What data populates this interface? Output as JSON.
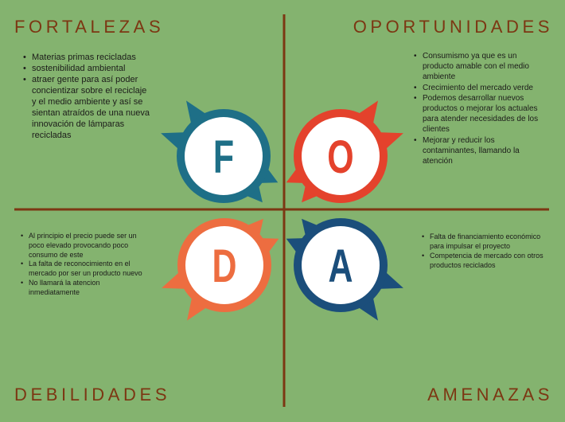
{
  "quadrants": {
    "fortalezas": {
      "title": "FORTALEZAS",
      "items": [
        "Materias primas recicladas",
        "sostenibilidad ambiental",
        "atraer gente para así poder concientizar sobre el reciclaje y el medio ambiente y así se sientan atraídos de una nueva innovación de lámparas recicladas"
      ]
    },
    "oportunidades": {
      "title": "OPORTUNIDADES",
      "items": [
        "Consumismo ya que es un producto amable con el medio ambiente",
        "Crecimiento del mercado verde",
        "Podemos desarrollar nuevos productos o mejorar los actuales para atender necesidades de los clientes",
        "Mejorar y reducir los contaminantes, llamando la atención"
      ]
    },
    "debilidades": {
      "title": "DEBILIDADES",
      "items": [
        "Al principio el precio puede ser un poco elevado provocando poco consumo de este",
        "La falta de reconocimiento en el mercado por ser un producto nuevo",
        "No llamará la atencion inmediatamente"
      ]
    },
    "amenazas": {
      "title": "AMENAZAS",
      "items": [
        "Falta de financiamiento económico para impulsar el proyecto",
        "Competencia de mercado con otros productos reciclados"
      ]
    }
  },
  "badges": [
    {
      "letter": "F",
      "color": "#1e6f87"
    },
    {
      "letter": "O",
      "color": "#e4422c"
    },
    {
      "letter": "D",
      "color": "#ed6d40"
    },
    {
      "letter": "A",
      "color": "#1b4e7b"
    }
  ],
  "colors": {
    "background": "#84b36f",
    "accent": "#7c3713",
    "text": "#1c1c1a"
  }
}
